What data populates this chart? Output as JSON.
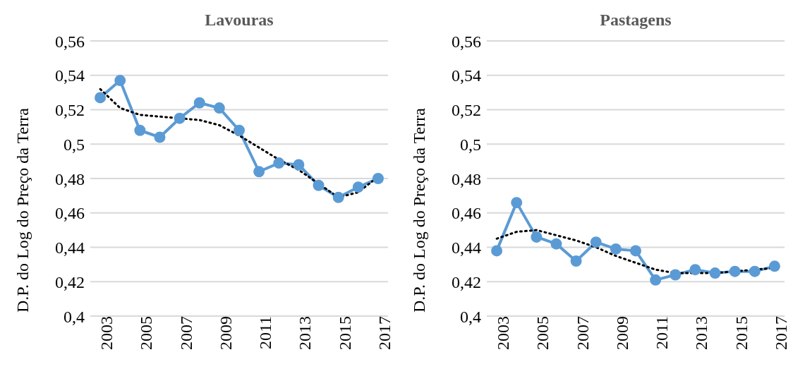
{
  "chart_data": [
    {
      "type": "line",
      "title": "Lavouras",
      "ylabel": "D.P. do Log do Preço da Terra",
      "categories": [
        "2003",
        null,
        "2005",
        null,
        "2007",
        null,
        "2009",
        null,
        "2011",
        null,
        "2013",
        null,
        "2015",
        null,
        "2017"
      ],
      "series": [
        {
          "color": "#5b9bd5",
          "marker": "circle",
          "line_style": "solid",
          "values": [
            0.527,
            0.537,
            0.508,
            0.504,
            0.515,
            0.524,
            0.521,
            0.508,
            0.484,
            0.489,
            0.488,
            0.476,
            0.469,
            0.475,
            0.48
          ]
        },
        {
          "color": "#000000",
          "marker": "none",
          "line_style": "dotted",
          "values": [
            0.532,
            0.521,
            0.517,
            0.516,
            0.515,
            0.514,
            0.511,
            0.505,
            0.498,
            0.491,
            0.485,
            0.477,
            0.469,
            0.472,
            0.481
          ]
        }
      ],
      "ylim": [
        0.4,
        0.56
      ],
      "yticks": [
        {
          "value": 0.4,
          "label": "0,4"
        },
        {
          "value": 0.42,
          "label": "0,42"
        },
        {
          "value": 0.44,
          "label": "0,44"
        },
        {
          "value": 0.46,
          "label": "0,46"
        },
        {
          "value": 0.48,
          "label": "0,48"
        },
        {
          "value": 0.5,
          "label": "0,5"
        },
        {
          "value": 0.52,
          "label": "0,52"
        },
        {
          "value": 0.54,
          "label": "0,54"
        },
        {
          "value": 0.56,
          "label": "0,56"
        }
      ],
      "grid": "y"
    },
    {
      "type": "line",
      "title": "Pastagens",
      "ylabel": "D.P. do Log do Preço da Terra",
      "categories": [
        "2003",
        null,
        "2005",
        null,
        "2007",
        null,
        "2009",
        null,
        "2011",
        null,
        "2013",
        null,
        "2015",
        null,
        "2017"
      ],
      "series": [
        {
          "color": "#5b9bd5",
          "marker": "circle",
          "line_style": "solid",
          "values": [
            0.438,
            0.466,
            0.446,
            0.442,
            0.432,
            0.443,
            0.439,
            0.438,
            0.421,
            0.424,
            0.427,
            0.425,
            0.426,
            0.426,
            0.429
          ]
        },
        {
          "color": "#000000",
          "marker": "none",
          "line_style": "dotted",
          "values": [
            0.445,
            0.449,
            0.45,
            0.447,
            0.444,
            0.44,
            0.435,
            0.431,
            0.427,
            0.425,
            0.425,
            0.425,
            0.426,
            0.427,
            0.428
          ]
        }
      ],
      "ylim": [
        0.4,
        0.56
      ],
      "yticks": [
        {
          "value": 0.4,
          "label": "0,4"
        },
        {
          "value": 0.42,
          "label": "0,42"
        },
        {
          "value": 0.44,
          "label": "0,44"
        },
        {
          "value": 0.46,
          "label": "0,46"
        },
        {
          "value": 0.48,
          "label": "0,48"
        },
        {
          "value": 0.5,
          "label": "0,5"
        },
        {
          "value": 0.52,
          "label": "0,52"
        },
        {
          "value": 0.54,
          "label": "0,54"
        },
        {
          "value": 0.56,
          "label": "0,56"
        }
      ],
      "grid": "y"
    }
  ]
}
